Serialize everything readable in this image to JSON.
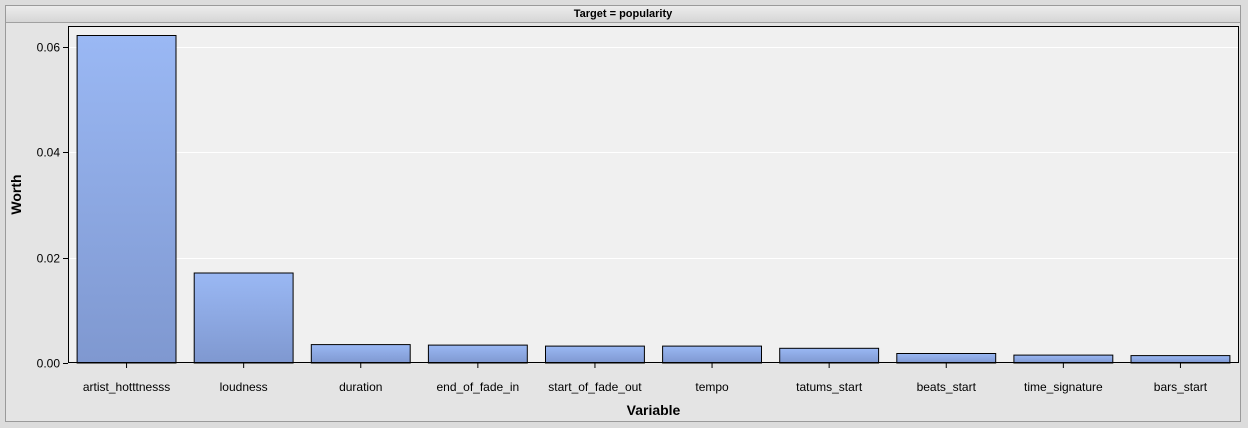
{
  "panel_title": "Target = popularity",
  "chart_data": {
    "type": "bar",
    "title": "Target = popularity",
    "xlabel": "Variable",
    "ylabel": "Worth",
    "ylim": [
      0,
      0.064
    ],
    "yticks": [
      "0.00",
      "0.02",
      "0.04",
      "0.06"
    ],
    "ytick_values": [
      0,
      0.02,
      0.04,
      0.06
    ],
    "grid": true,
    "categories": [
      "artist_hotttnesss",
      "loudness",
      "duration",
      "end_of_fade_in",
      "start_of_fade_out",
      "tempo",
      "tatums_start",
      "beats_start",
      "time_signature",
      "bars_start"
    ],
    "values": [
      0.0622,
      0.0171,
      0.0035,
      0.0034,
      0.0032,
      0.0032,
      0.0028,
      0.0018,
      0.0015,
      0.0014
    ],
    "colors": {
      "bar_top": "#9ab8f4",
      "bar_bottom": "#7f98d0",
      "bar_outline": "#000000",
      "plot_bg": "#f0f0f0",
      "grid": "#ffffff"
    }
  }
}
